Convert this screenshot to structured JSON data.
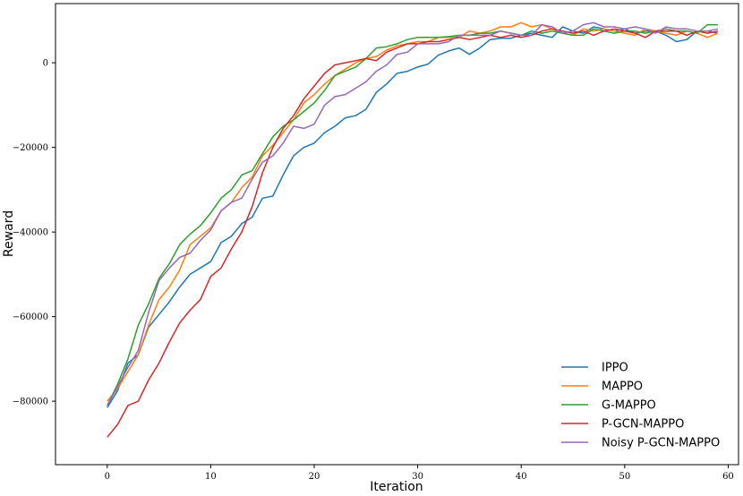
{
  "chart_data": {
    "type": "line",
    "title": "",
    "xlabel": "Iteration",
    "ylabel": "Reward",
    "xlim": [
      -5,
      61
    ],
    "ylim": [
      -95000,
      14000
    ],
    "xticks": [
      0,
      10,
      20,
      30,
      40,
      50,
      60
    ],
    "yticks": [
      -80000,
      -60000,
      -40000,
      -20000,
      0
    ],
    "ytick_labels": [
      "−80000",
      "−60000",
      "−40000",
      "−20000",
      "0"
    ],
    "grid": false,
    "legend_position": "lower-right",
    "series": [
      {
        "name": "IPPO",
        "color": "#1f77b4",
        "values": [
          -81500,
          -77500,
          -71000,
          -69000,
          -62500,
          -59500,
          -56500,
          -53000,
          -50000,
          -48500,
          -47000,
          -42500,
          -41000,
          -38000,
          -36500,
          -32000,
          -31500,
          -26500,
          -22000,
          -20000,
          -19000,
          -16500,
          -15000,
          -13000,
          -12500,
          -11000,
          -7000,
          -5000,
          -2500,
          -2000,
          -1000,
          -300,
          1800,
          2800,
          3500,
          2000,
          3500,
          5500,
          5800,
          5800,
          6500,
          7000,
          6500,
          6000,
          8500,
          7500,
          7000,
          8500,
          8000,
          7500,
          8000,
          7000,
          7500,
          7500,
          6500,
          5000,
          5500,
          7500,
          7500,
          7000
        ]
      },
      {
        "name": "MAPPO",
        "color": "#ff7f0e",
        "values": [
          -80000,
          -77000,
          -73000,
          -69000,
          -62000,
          -56000,
          -53000,
          -49000,
          -43000,
          -41000,
          -39000,
          -35000,
          -33000,
          -29500,
          -27000,
          -22000,
          -19500,
          -16500,
          -13500,
          -9500,
          -7500,
          -5000,
          -3000,
          -1500,
          0,
          1000,
          1500,
          3000,
          4000,
          4500,
          5000,
          5000,
          6000,
          6000,
          6000,
          7500,
          7000,
          7500,
          8500,
          8500,
          9500,
          8500,
          9000,
          8000,
          7000,
          6500,
          8000,
          7500,
          8000,
          7500,
          7000,
          6500,
          8000,
          7500,
          7000,
          6500,
          7500,
          7000,
          6000,
          7000
        ]
      },
      {
        "name": "G-MAPPO",
        "color": "#2ca02c",
        "values": [
          -81000,
          -76000,
          -70000,
          -62000,
          -57000,
          -51000,
          -47500,
          -43000,
          -40500,
          -38500,
          -35500,
          -32000,
          -30000,
          -26500,
          -25500,
          -21500,
          -17500,
          -15000,
          -13500,
          -11500,
          -9500,
          -6500,
          -3000,
          -2000,
          -1000,
          1000,
          3500,
          3800,
          4500,
          5500,
          6000,
          6000,
          6000,
          6200,
          6500,
          6500,
          7000,
          7000,
          7500,
          7000,
          6500,
          7500,
          7000,
          7500,
          7000,
          6500,
          6500,
          8000,
          7500,
          7000,
          7500,
          7500,
          7000,
          7500,
          8000,
          7500,
          7500,
          7000,
          9000,
          9000
        ]
      },
      {
        "name": "P-GCN-MAPPO",
        "color": "#d62728",
        "values": [
          -88500,
          -85500,
          -81000,
          -80000,
          -75000,
          -71000,
          -66000,
          -61500,
          -58500,
          -56000,
          -50500,
          -48500,
          -44000,
          -40000,
          -34000,
          -26000,
          -20000,
          -15500,
          -12500,
          -8500,
          -5500,
          -2500,
          -500,
          0,
          500,
          1000,
          500,
          2500,
          3500,
          4500,
          4500,
          5000,
          5000,
          5500,
          6000,
          5500,
          6000,
          6500,
          6000,
          6500,
          6000,
          6500,
          7500,
          8000,
          7500,
          7000,
          7500,
          6500,
          7500,
          8000,
          7500,
          7000,
          6000,
          7500,
          7500,
          7500,
          6500,
          7500,
          7000,
          7500
        ]
      },
      {
        "name": "Noisy P-GCN-MAPPO",
        "color": "#9467bd",
        "values": [
          -81000,
          -76500,
          -72000,
          -68000,
          -59000,
          -51500,
          -48500,
          -46000,
          -45000,
          -42000,
          -39500,
          -35000,
          -33000,
          -32000,
          -27500,
          -23500,
          -22000,
          -19000,
          -15000,
          -15500,
          -14500,
          -10000,
          -8000,
          -7500,
          -6000,
          -4500,
          -2000,
          -500,
          2000,
          2500,
          4500,
          4500,
          4500,
          5000,
          6500,
          6500,
          6500,
          6500,
          7500,
          7000,
          6500,
          6500,
          9000,
          8500,
          7000,
          7500,
          9000,
          9500,
          8500,
          8500,
          8000,
          8500,
          8000,
          7000,
          8500,
          8000,
          8000,
          7500,
          7500,
          8000
        ]
      }
    ]
  }
}
